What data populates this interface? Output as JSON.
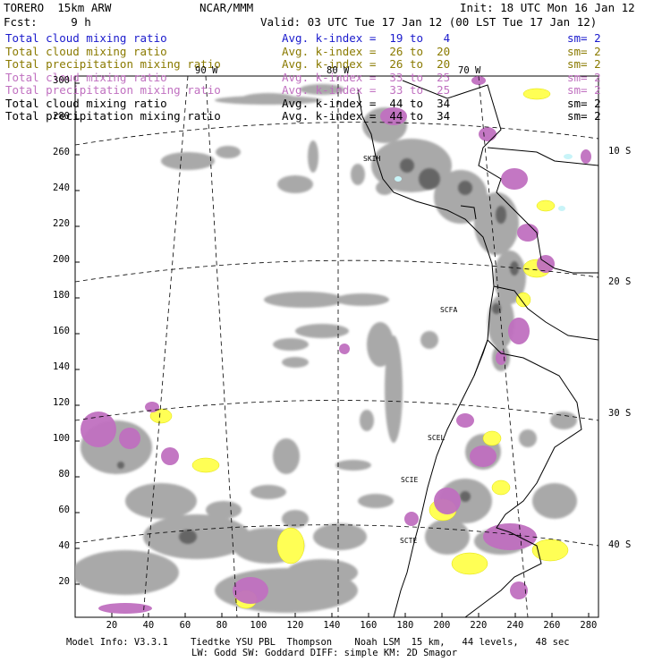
{
  "header": {
    "model": "TORERO  15km ARW",
    "center": "NCAR/MMM",
    "init": "Init: 18 UTC Mon 16 Jan 12",
    "fcst": "Fcst:     9 h",
    "valid": "Valid: 03 UTC Tue 17 Jan 12 (00 LST Tue 17 Jan 12)"
  },
  "legend": [
    {
      "field": "Total cloud mixing ratio",
      "kindex": "Avg. k-index =  19 to   4",
      "sm": "sm= 2",
      "color": "#1a1acc"
    },
    {
      "field": "Total cloud mixing ratio",
      "kindex": "Avg. k-index =  26 to  20",
      "sm": "sm= 2",
      "color": "#8a7a00"
    },
    {
      "field": "Total precipitation mixing ratio",
      "kindex": "Avg. k-index =  26 to  20",
      "sm": "sm= 2",
      "color": "#8a7a00"
    },
    {
      "field": "Total cloud mixing ratio",
      "kindex": "Avg. k-index =  33 to  25",
      "sm": "sm= 2",
      "color": "#c070c0"
    },
    {
      "field": "Total precipitation mixing ratio",
      "kindex": "Avg. k-index =  33 to  25",
      "sm": "sm= 2",
      "color": "#c070c0"
    },
    {
      "field": "Total cloud mixing ratio",
      "kindex": "Avg. k-index =  44 to  34",
      "sm": "sm= 2",
      "color": "#000000"
    },
    {
      "field": "Total precipitation mixing ratio",
      "kindex": "Avg. k-index =  44 to  34",
      "sm": "sm= 2",
      "color": "#000000"
    }
  ],
  "axes": {
    "x_ticks": [
      "20",
      "40",
      "60",
      "80",
      "100",
      "120",
      "140",
      "160",
      "180",
      "200",
      "220",
      "240",
      "260",
      "280"
    ],
    "y_ticks": [
      "20",
      "40",
      "60",
      "80",
      "100",
      "120",
      "140",
      "160",
      "180",
      "200",
      "220",
      "240",
      "260",
      "280",
      "300"
    ],
    "lon_labels": [
      "90 W",
      "80 W",
      "70 W"
    ],
    "lat_labels": [
      "10 S",
      "20 S",
      "30 S",
      "40 S"
    ]
  },
  "stations": [
    "SKIH",
    "SCFA",
    "SCEL",
    "SCIE",
    "SCTE"
  ],
  "footer": {
    "line1": "Model Info: V3.3.1    Tiedtke YSU PBL  Thompson    Noah LSM  15 km,   44 levels,   48 sec",
    "line2": "LW: Godd SW: Goddard DIFF: simple KM: 2D Smagor"
  },
  "colors": {
    "cloud_gray": "#9a9a9a",
    "cloud_dark": "#555555",
    "precip_yellow": "#ffff44",
    "precip_magenta": "#c070c0",
    "light_cyan": "#c8f4f8"
  }
}
